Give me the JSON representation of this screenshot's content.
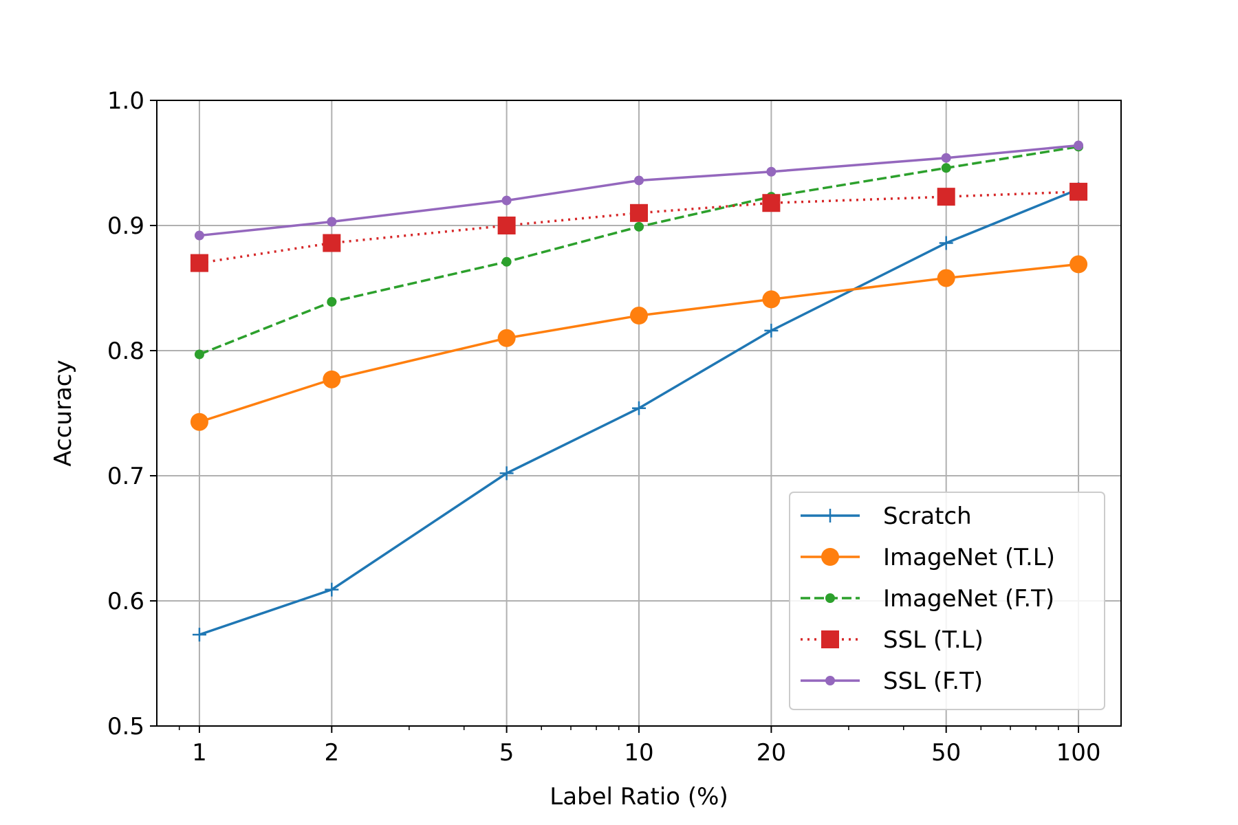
{
  "chart_data": {
    "type": "line",
    "xlabel": "Label Ratio (%)",
    "ylabel": "Accuracy",
    "x_scale": "log",
    "xlim": [
      0.8,
      125
    ],
    "ylim": [
      0.5,
      1.0
    ],
    "x": [
      1,
      2,
      5,
      10,
      20,
      50,
      100
    ],
    "xticks": [
      "1",
      "2",
      "5",
      "10",
      "20",
      "50",
      "100"
    ],
    "yticks": [
      "0.5",
      "0.6",
      "0.7",
      "0.8",
      "0.9",
      "1.0"
    ],
    "grid": true,
    "legend_position": "lower-right",
    "series": [
      {
        "name": "Scratch",
        "values": [
          0.573,
          0.609,
          0.702,
          0.754,
          0.816,
          0.886,
          0.929
        ],
        "color": "#1f77b4",
        "line_style": "solid",
        "marker": "plus"
      },
      {
        "name": "ImageNet (T.L)",
        "values": [
          0.743,
          0.777,
          0.81,
          0.828,
          0.841,
          0.858,
          0.869
        ],
        "color": "#ff7f0e",
        "line_style": "solid",
        "marker": "circle-large"
      },
      {
        "name": "ImageNet (F.T)",
        "values": [
          0.797,
          0.839,
          0.871,
          0.899,
          0.923,
          0.946,
          0.963
        ],
        "color": "#2ca02c",
        "line_style": "dashed",
        "marker": "circle-small"
      },
      {
        "name": "SSL (T.L)",
        "values": [
          0.87,
          0.886,
          0.9,
          0.91,
          0.918,
          0.923,
          0.927
        ],
        "color": "#d62728",
        "line_style": "dotted",
        "marker": "square"
      },
      {
        "name": "SSL (F.T)",
        "values": [
          0.892,
          0.903,
          0.92,
          0.936,
          0.943,
          0.954,
          0.964
        ],
        "color": "#9467bd",
        "line_style": "solid",
        "marker": "circle-small"
      }
    ]
  }
}
